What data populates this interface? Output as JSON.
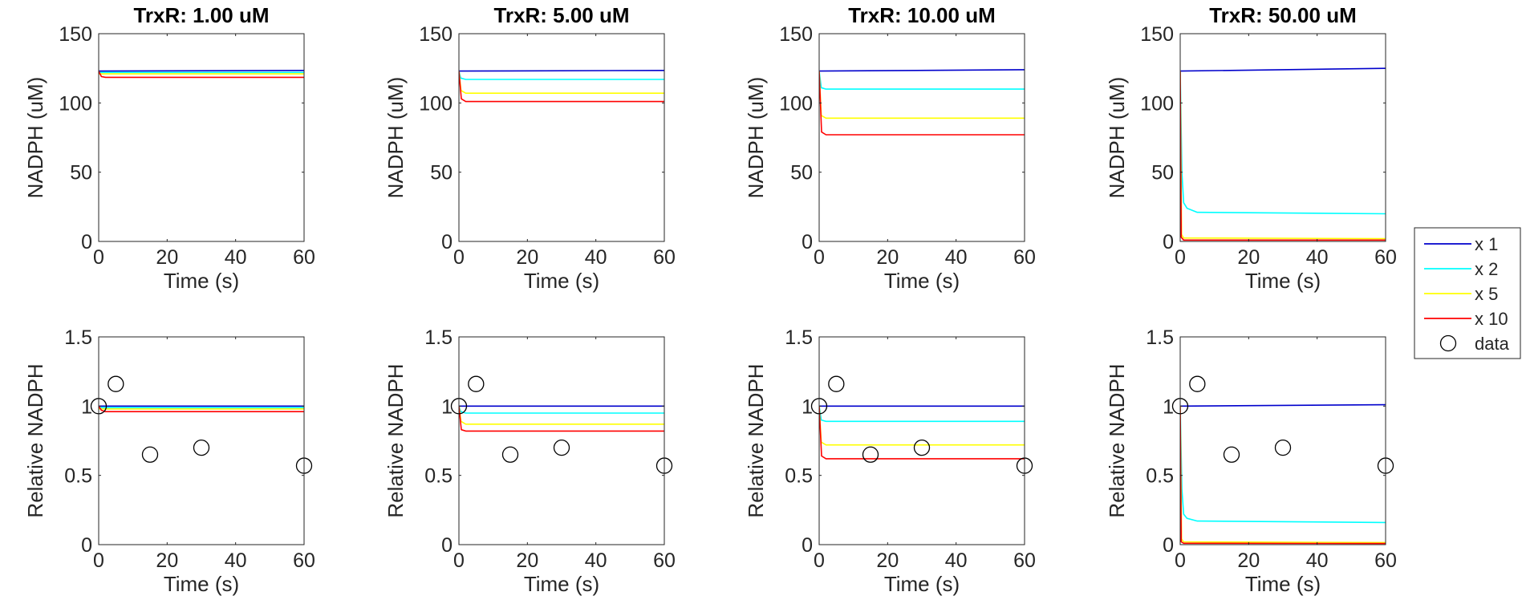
{
  "colors": {
    "x1": "#0000cc",
    "x2": "#00ffff",
    "x5": "#ffff00",
    "x10": "#ff0000",
    "data_marker": "#000000",
    "axis": "#262626"
  },
  "legend": {
    "placement": "right, between rows",
    "entries": [
      {
        "label": "x 1",
        "color": "#0000cc",
        "kind": "line"
      },
      {
        "label": "x 2",
        "color": "#00ffff",
        "kind": "line"
      },
      {
        "label": "x 5",
        "color": "#ffff00",
        "kind": "line"
      },
      {
        "label": "x 10",
        "color": "#ff0000",
        "kind": "line"
      },
      {
        "label": "data",
        "color": "#000000",
        "kind": "circle"
      }
    ]
  },
  "chart_data": [
    {
      "type": "line",
      "title": "TrxR: 1.00 uM",
      "xlabel": "Time (s)",
      "ylabel": "NADPH (uM)",
      "xlim": [
        0,
        60
      ],
      "ylim": [
        0,
        150
      ],
      "xticks": [
        0,
        20,
        40,
        60
      ],
      "yticks": [
        0,
        50,
        100,
        150
      ],
      "series": [
        {
          "name": "x 1",
          "color": "#0000cc",
          "x": [
            0,
            60
          ],
          "y": [
            123,
            123.5
          ]
        },
        {
          "name": "x 2",
          "color": "#00ffff",
          "x": [
            0,
            60
          ],
          "y": [
            122,
            122
          ]
        },
        {
          "name": "x 5",
          "color": "#ffff00",
          "x": [
            0,
            60
          ],
          "y": [
            121,
            121
          ]
        },
        {
          "name": "x 10",
          "color": "#ff0000",
          "x": [
            0,
            0.8,
            2,
            60
          ],
          "y": [
            123,
            119,
            118.5,
            118.5
          ]
        }
      ]
    },
    {
      "type": "line",
      "title": "TrxR: 5.00 uM",
      "xlabel": "Time (s)",
      "ylabel": "NADPH (uM)",
      "xlim": [
        0,
        60
      ],
      "ylim": [
        0,
        150
      ],
      "xticks": [
        0,
        20,
        40,
        60
      ],
      "yticks": [
        0,
        50,
        100,
        150
      ],
      "series": [
        {
          "name": "x 1",
          "color": "#0000cc",
          "x": [
            0,
            60
          ],
          "y": [
            123,
            123.5
          ]
        },
        {
          "name": "x 2",
          "color": "#00ffff",
          "x": [
            0,
            0.5,
            2,
            60
          ],
          "y": [
            123,
            118,
            117,
            117
          ]
        },
        {
          "name": "x 5",
          "color": "#ffff00",
          "x": [
            0,
            0.6,
            2,
            60
          ],
          "y": [
            123,
            109,
            107,
            107
          ]
        },
        {
          "name": "x 10",
          "color": "#ff0000",
          "x": [
            0,
            0.7,
            2,
            60
          ],
          "y": [
            123,
            103,
            101,
            101
          ]
        }
      ]
    },
    {
      "type": "line",
      "title": "TrxR: 10.00 uM",
      "xlabel": "Time (s)",
      "ylabel": "NADPH (uM)",
      "xlim": [
        0,
        60
      ],
      "ylim": [
        0,
        150
      ],
      "xticks": [
        0,
        20,
        40,
        60
      ],
      "yticks": [
        0,
        50,
        100,
        150
      ],
      "series": [
        {
          "name": "x 1",
          "color": "#0000cc",
          "x": [
            0,
            60
          ],
          "y": [
            123,
            124
          ]
        },
        {
          "name": "x 2",
          "color": "#00ffff",
          "x": [
            0,
            0.6,
            2,
            60
          ],
          "y": [
            123,
            111,
            110,
            110
          ]
        },
        {
          "name": "x 5",
          "color": "#ffff00",
          "x": [
            0,
            0.6,
            2,
            60
          ],
          "y": [
            123,
            91,
            89,
            89
          ]
        },
        {
          "name": "x 10",
          "color": "#ff0000",
          "x": [
            0,
            0.7,
            2,
            60
          ],
          "y": [
            123,
            79,
            77,
            77
          ]
        }
      ]
    },
    {
      "type": "line",
      "title": "TrxR: 50.00 uM",
      "xlabel": "Time (s)",
      "ylabel": "NADPH (uM)",
      "xlim": [
        0,
        60
      ],
      "ylim": [
        0,
        150
      ],
      "xticks": [
        0,
        20,
        40,
        60
      ],
      "yticks": [
        0,
        50,
        100,
        150
      ],
      "series": [
        {
          "name": "x 1",
          "color": "#0000cc",
          "x": [
            0,
            60
          ],
          "y": [
            123,
            125
          ]
        },
        {
          "name": "x 2",
          "color": "#00ffff",
          "x": [
            0,
            0.5,
            1,
            2,
            5,
            60
          ],
          "y": [
            123,
            50,
            28,
            24,
            21,
            20
          ]
        },
        {
          "name": "x 5",
          "color": "#ffff00",
          "x": [
            0,
            0.4,
            1,
            60
          ],
          "y": [
            123,
            5,
            2.5,
            2
          ]
        },
        {
          "name": "x 10",
          "color": "#ff0000",
          "x": [
            0,
            0.3,
            1,
            60
          ],
          "y": [
            123,
            3,
            1,
            1
          ]
        }
      ]
    },
    {
      "type": "line",
      "title": "",
      "xlabel": "Time (s)",
      "ylabel": "Relative NADPH",
      "xlim": [
        0,
        60
      ],
      "ylim": [
        0,
        1.5
      ],
      "xticks": [
        0,
        20,
        40,
        60
      ],
      "yticks": [
        0,
        0.5,
        1,
        1.5
      ],
      "series": [
        {
          "name": "x 1",
          "color": "#0000cc",
          "x": [
            0,
            60
          ],
          "y": [
            1.0,
            1.0
          ]
        },
        {
          "name": "x 2",
          "color": "#00ffff",
          "x": [
            0,
            60
          ],
          "y": [
            0.99,
            0.99
          ]
        },
        {
          "name": "x 5",
          "color": "#ffff00",
          "x": [
            0,
            60
          ],
          "y": [
            0.98,
            0.98
          ]
        },
        {
          "name": "x 10",
          "color": "#ff0000",
          "x": [
            0,
            0.8,
            2,
            60
          ],
          "y": [
            1.0,
            0.97,
            0.96,
            0.96
          ]
        }
      ],
      "data_points": {
        "name": "data",
        "x": [
          0,
          5,
          15,
          30,
          60
        ],
        "y": [
          1.0,
          1.16,
          0.65,
          0.7,
          0.57
        ]
      }
    },
    {
      "type": "line",
      "title": "",
      "xlabel": "Time (s)",
      "ylabel": "Relative NADPH",
      "xlim": [
        0,
        60
      ],
      "ylim": [
        0,
        1.5
      ],
      "xticks": [
        0,
        20,
        40,
        60
      ],
      "yticks": [
        0,
        0.5,
        1,
        1.5
      ],
      "series": [
        {
          "name": "x 1",
          "color": "#0000cc",
          "x": [
            0,
            60
          ],
          "y": [
            1.0,
            1.0
          ]
        },
        {
          "name": "x 2",
          "color": "#00ffff",
          "x": [
            0,
            0.5,
            2,
            60
          ],
          "y": [
            1.0,
            0.96,
            0.95,
            0.95
          ]
        },
        {
          "name": "x 5",
          "color": "#ffff00",
          "x": [
            0,
            0.6,
            2,
            60
          ],
          "y": [
            1.0,
            0.89,
            0.87,
            0.87
          ]
        },
        {
          "name": "x 10",
          "color": "#ff0000",
          "x": [
            0,
            0.7,
            2,
            60
          ],
          "y": [
            1.0,
            0.83,
            0.82,
            0.82
          ]
        }
      ],
      "data_points": {
        "name": "data",
        "x": [
          0,
          5,
          15,
          30,
          60
        ],
        "y": [
          1.0,
          1.16,
          0.65,
          0.7,
          0.57
        ]
      }
    },
    {
      "type": "line",
      "title": "",
      "xlabel": "Time (s)",
      "ylabel": "Relative NADPH",
      "xlim": [
        0,
        60
      ],
      "ylim": [
        0,
        1.5
      ],
      "xticks": [
        0,
        20,
        40,
        60
      ],
      "yticks": [
        0,
        0.5,
        1,
        1.5
      ],
      "series": [
        {
          "name": "x 1",
          "color": "#0000cc",
          "x": [
            0,
            60
          ],
          "y": [
            1.0,
            1.0
          ]
        },
        {
          "name": "x 2",
          "color": "#00ffff",
          "x": [
            0,
            0.6,
            2,
            60
          ],
          "y": [
            1.0,
            0.9,
            0.89,
            0.89
          ]
        },
        {
          "name": "x 5",
          "color": "#ffff00",
          "x": [
            0,
            0.6,
            2,
            60
          ],
          "y": [
            1.0,
            0.74,
            0.72,
            0.72
          ]
        },
        {
          "name": "x 10",
          "color": "#ff0000",
          "x": [
            0,
            0.7,
            2,
            60
          ],
          "y": [
            1.0,
            0.64,
            0.62,
            0.62
          ]
        }
      ],
      "data_points": {
        "name": "data",
        "x": [
          0,
          5,
          15,
          30,
          60
        ],
        "y": [
          1.0,
          1.16,
          0.65,
          0.7,
          0.57
        ]
      }
    },
    {
      "type": "line",
      "title": "",
      "xlabel": "Time (s)",
      "ylabel": "Relative NADPH",
      "xlim": [
        0,
        60
      ],
      "ylim": [
        0,
        1.5
      ],
      "xticks": [
        0,
        20,
        40,
        60
      ],
      "yticks": [
        0,
        0.5,
        1,
        1.5
      ],
      "series": [
        {
          "name": "x 1",
          "color": "#0000cc",
          "x": [
            0,
            60
          ],
          "y": [
            1.0,
            1.01
          ]
        },
        {
          "name": "x 2",
          "color": "#00ffff",
          "x": [
            0,
            0.5,
            1,
            2,
            5,
            60
          ],
          "y": [
            1.0,
            0.4,
            0.22,
            0.19,
            0.17,
            0.16
          ]
        },
        {
          "name": "x 5",
          "color": "#ffff00",
          "x": [
            0,
            0.4,
            1,
            60
          ],
          "y": [
            1.0,
            0.04,
            0.02,
            0.015
          ]
        },
        {
          "name": "x 10",
          "color": "#ff0000",
          "x": [
            0,
            0.3,
            1,
            60
          ],
          "y": [
            1.0,
            0.02,
            0.01,
            0.008
          ]
        }
      ],
      "data_points": {
        "name": "data",
        "x": [
          0,
          5,
          15,
          30,
          60
        ],
        "y": [
          1.0,
          1.16,
          0.65,
          0.7,
          0.57
        ]
      }
    }
  ]
}
